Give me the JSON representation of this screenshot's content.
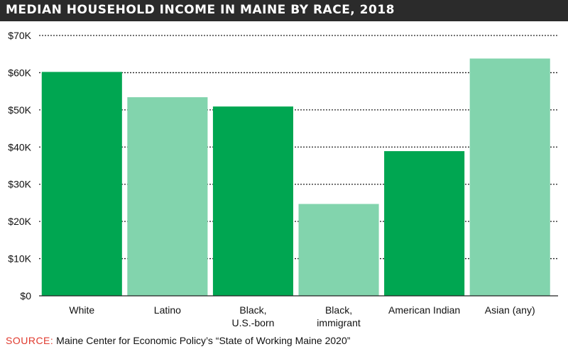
{
  "title": "MEDIAN HOUSEHOLD INCOME IN MAINE BY RACE, 2018",
  "source": {
    "label": "SOURCE:",
    "text": " Maine Center for Economic Policy’s “State of Working Maine 2020”"
  },
  "colors": {
    "dark_green": "#00a651",
    "light_green": "#82d4ad",
    "title_bg": "#2b2b2b",
    "source_label": "#e03a2e"
  },
  "chart_data": {
    "type": "bar",
    "title": "MEDIAN HOUSEHOLD INCOME IN MAINE BY RACE, 2018",
    "xlabel": "",
    "ylabel": "",
    "ylim": [
      0,
      70000
    ],
    "yticks": [
      "$0",
      "$10K",
      "$20K",
      "$30K",
      "$40K",
      "$50K",
      "$60K",
      "$70K"
    ],
    "grid": "horizontal dotted",
    "categories": [
      [
        "White"
      ],
      [
        "Latino"
      ],
      [
        "Black,",
        "U.S.-born"
      ],
      [
        "Black,",
        "immigrant"
      ],
      [
        "American Indian"
      ],
      [
        "Asian (any)"
      ]
    ],
    "values": [
      60200,
      53400,
      50900,
      24700,
      38900,
      63800
    ],
    "bar_colors": [
      "dark_green",
      "light_green",
      "dark_green",
      "light_green",
      "dark_green",
      "light_green"
    ]
  }
}
